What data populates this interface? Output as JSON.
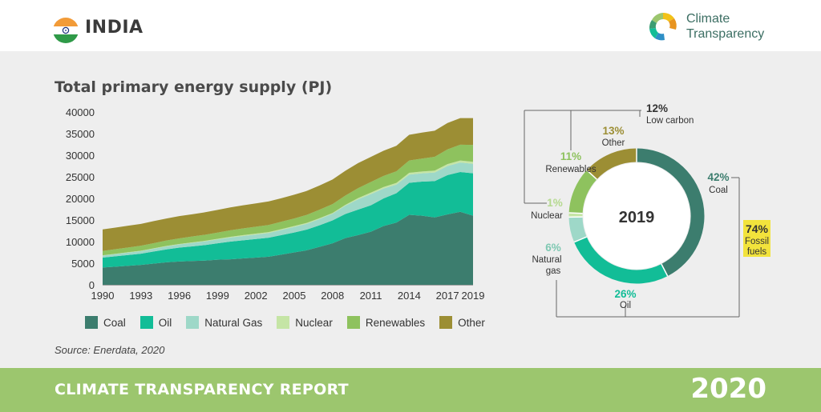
{
  "header": {
    "country": "INDIA",
    "logo_line1": "Climate",
    "logo_line2": "Transparency"
  },
  "source": "Source: Enerdata, 2020",
  "footer": {
    "title": "CLIMATE TRANSPARENCY REPORT",
    "year": "2020"
  },
  "chart_data": [
    {
      "type": "area",
      "stacked": true,
      "title": "Total primary energy supply (PJ)",
      "xlabel": "",
      "ylabel": "",
      "xlim": [
        1990,
        2019
      ],
      "ylim": [
        0,
        40000
      ],
      "yticks": [
        0,
        5000,
        10000,
        15000,
        20000,
        25000,
        30000,
        35000,
        40000
      ],
      "xticks": [
        1990,
        1993,
        1996,
        1999,
        2002,
        2005,
        2008,
        2011,
        2014,
        2017,
        2019
      ],
      "legend_position": "bottom",
      "x": [
        1990,
        1991,
        1992,
        1993,
        1994,
        1995,
        1996,
        1997,
        1998,
        1999,
        2000,
        2001,
        2002,
        2003,
        2004,
        2005,
        2006,
        2007,
        2008,
        2009,
        2010,
        2011,
        2012,
        2013,
        2014,
        2015,
        2016,
        2017,
        2018,
        2019
      ],
      "series": [
        {
          "name": "Coal",
          "color": "#3c7d6e",
          "values": [
            4000,
            4200,
            4400,
            4600,
            4900,
            5200,
            5400,
            5500,
            5600,
            5800,
            5900,
            6100,
            6300,
            6500,
            7000,
            7500,
            8000,
            8800,
            9600,
            10800,
            11500,
            12300,
            13600,
            14400,
            16200,
            16000,
            15600,
            16300,
            16900,
            16000
          ]
        },
        {
          "name": "Oil",
          "color": "#12bd97",
          "values": [
            2300,
            2400,
            2500,
            2600,
            2800,
            3000,
            3200,
            3400,
            3600,
            3800,
            4100,
            4200,
            4300,
            4400,
            4500,
            4600,
            4800,
            5000,
            5300,
            5600,
            5900,
            6100,
            6400,
            6800,
            7400,
            7900,
            8400,
            9100,
            9200,
            9800
          ]
        },
        {
          "name": "Natural Gas",
          "color": "#9ed8c8",
          "values": [
            450,
            500,
            550,
            600,
            650,
            700,
            750,
            800,
            850,
            900,
            950,
            1000,
            1050,
            1100,
            1200,
            1300,
            1350,
            1450,
            1550,
            1900,
            2400,
            2600,
            2300,
            2000,
            1900,
            1900,
            2000,
            2100,
            2200,
            2200
          ]
        },
        {
          "name": "Nuclear",
          "color": "#c5e5a5",
          "values": [
            70,
            80,
            85,
            90,
            90,
            100,
            100,
            120,
            130,
            140,
            170,
            200,
            200,
            200,
            200,
            200,
            200,
            200,
            170,
            200,
            260,
            350,
            350,
            380,
            420,
            420,
            430,
            450,
            480,
            480
          ]
        },
        {
          "name": "Renewables",
          "color": "#8ec25e",
          "values": [
            1000,
            1050,
            1100,
            1150,
            1200,
            1250,
            1300,
            1350,
            1400,
            1450,
            1500,
            1550,
            1600,
            1650,
            1700,
            1750,
            1850,
            1950,
            2050,
            2150,
            2300,
            2450,
            2550,
            2700,
            2850,
            3000,
            3200,
            3400,
            3650,
            3900
          ]
        },
        {
          "name": "Other",
          "color": "#9c8e34",
          "values": [
            5000,
            5000,
            5050,
            5050,
            5100,
            5100,
            5150,
            5150,
            5200,
            5250,
            5300,
            5350,
            5400,
            5450,
            5450,
            5500,
            5550,
            5600,
            5700,
            5750,
            5800,
            5800,
            5850,
            5900,
            5950,
            6000,
            6050,
            6100,
            6150,
            6200
          ]
        }
      ]
    },
    {
      "type": "pie",
      "donut": true,
      "center_label": "2019",
      "slices": [
        {
          "name": "Coal",
          "pct": "42%",
          "value": 42,
          "color": "#3c7d6e"
        },
        {
          "name": "Oil",
          "pct": "26%",
          "value": 26,
          "color": "#12bd97"
        },
        {
          "name": "Natural gas",
          "pct": "6%",
          "value": 6,
          "color": "#9ed8c8"
        },
        {
          "name": "Nuclear",
          "pct": "1%",
          "value": 1,
          "color": "#c5e5a5"
        },
        {
          "name": "Renewables",
          "pct": "11%",
          "value": 11,
          "color": "#8ec25e"
        },
        {
          "name": "Other",
          "pct": "13%",
          "value": 13,
          "color": "#9c8e34"
        }
      ],
      "groups": [
        {
          "name": "Low carbon",
          "pct": "12%"
        },
        {
          "name": "Fossil fuels",
          "pct": "74%"
        }
      ]
    }
  ]
}
